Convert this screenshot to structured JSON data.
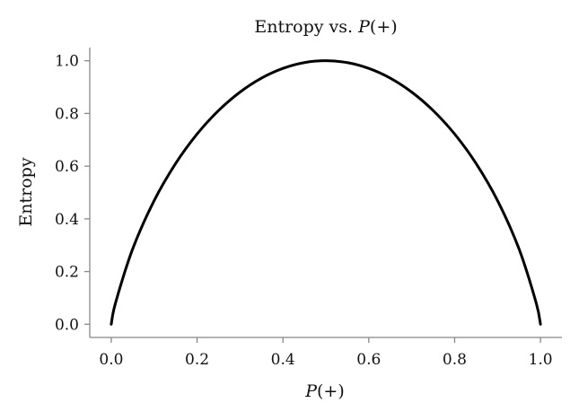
{
  "chart_data": {
    "type": "line",
    "title_prefix": "Entropy vs. ",
    "title_var": "P",
    "title_suffix": "(+)",
    "xlabel_var": "P",
    "xlabel_suffix": "(+)",
    "ylabel": "Entropy",
    "xlim": [
      -0.05,
      1.05
    ],
    "ylim": [
      -0.05,
      1.05
    ],
    "xticks": [
      0.0,
      0.2,
      0.4,
      0.6,
      0.8,
      1.0
    ],
    "xtick_labels": [
      "0.0",
      "0.2",
      "0.4",
      "0.6",
      "0.8",
      "1.0"
    ],
    "yticks": [
      0.0,
      0.2,
      0.4,
      0.6,
      0.8,
      1.0
    ],
    "ytick_labels": [
      "0.0",
      "0.2",
      "0.4",
      "0.6",
      "0.8",
      "1.0"
    ],
    "grid": false,
    "line_color": "#000000",
    "spine_color": "#888888",
    "x": [
      0.0,
      0.01,
      0.05,
      0.1,
      0.15,
      0.2,
      0.25,
      0.3,
      0.35,
      0.4,
      0.45,
      0.5,
      0.55,
      0.6,
      0.65,
      0.7,
      0.75,
      0.8,
      0.85,
      0.9,
      0.95,
      0.99,
      1.0
    ],
    "y": [
      0.0,
      0.081,
      0.286,
      0.469,
      0.61,
      0.722,
      0.811,
      0.881,
      0.934,
      0.971,
      0.993,
      1.0,
      0.993,
      0.971,
      0.934,
      0.881,
      0.811,
      0.722,
      0.61,
      0.469,
      0.286,
      0.081,
      0.0
    ]
  }
}
